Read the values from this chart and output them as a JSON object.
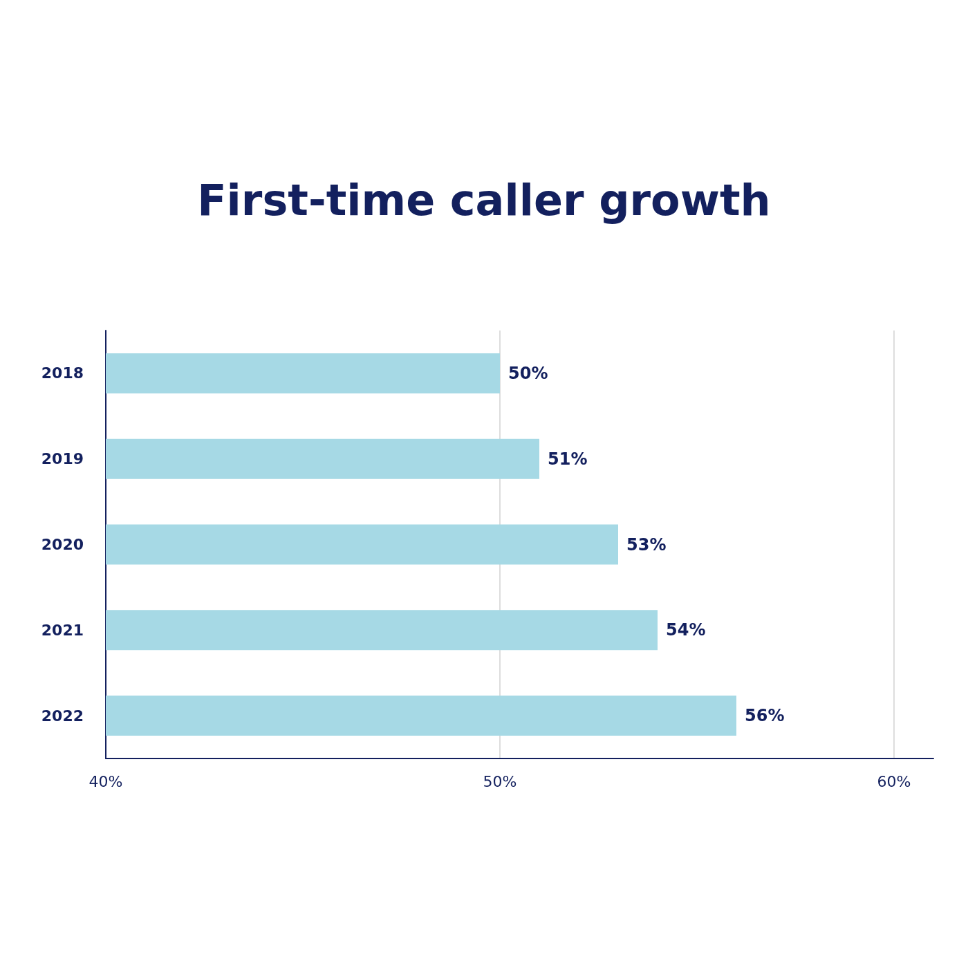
{
  "chart_data": {
    "type": "bar",
    "orientation": "horizontal",
    "title": "First-time caller growth",
    "categories": [
      "2018",
      "2019",
      "2020",
      "2021",
      "2022"
    ],
    "values": [
      50,
      51,
      53,
      54,
      56
    ],
    "value_labels": [
      "50%",
      "51%",
      "53%",
      "54%",
      "56%"
    ],
    "color": "#a6d9e5",
    "xlim": [
      40,
      61
    ],
    "xticks": [
      {
        "value": 40,
        "label": "40%"
      },
      {
        "value": 50,
        "label": "50%"
      },
      {
        "value": 60,
        "label": "60%"
      }
    ],
    "grid": "x"
  }
}
